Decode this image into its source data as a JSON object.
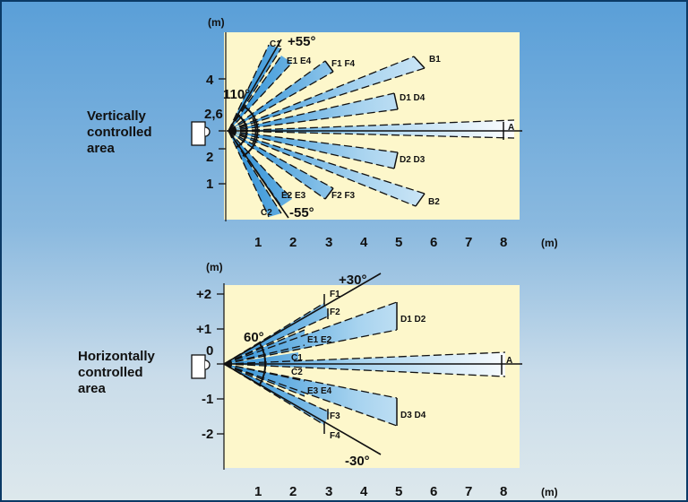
{
  "unit_label": "(m)",
  "top": {
    "area_title": [
      "Vertically",
      "controlled",
      "area"
    ],
    "y_ticks": [
      {
        "v": 4,
        "label": "4"
      },
      {
        "v": 2.6,
        "label": "2,6"
      },
      {
        "v": 2,
        "label": "2"
      },
      {
        "v": 1,
        "label": "1"
      }
    ],
    "x_ticks": [
      "1",
      "2",
      "3",
      "4",
      "5",
      "6",
      "7",
      "8"
    ],
    "angle_upper": "+55°",
    "angle_lower": "-55°",
    "angle_total": "110°",
    "beams": [
      "A",
      "B1",
      "B2",
      "C1",
      "C2",
      "D1 D4",
      "D2 D3",
      "E1 E4",
      "E2 E3",
      "F1 F4",
      "F2 F3"
    ]
  },
  "bottom": {
    "area_title": [
      "Horizontally",
      "controlled",
      "area"
    ],
    "y_ticks": [
      {
        "v": 2,
        "label": "+2"
      },
      {
        "v": 1,
        "label": "+1"
      },
      {
        "v": 0,
        "label": "0"
      },
      {
        "v": -1,
        "label": "-1"
      },
      {
        "v": -2,
        "label": "-2"
      }
    ],
    "x_ticks": [
      "1",
      "2",
      "3",
      "4",
      "5",
      "6",
      "7",
      "8"
    ],
    "angle_upper": "+30°",
    "angle_lower": "-30°",
    "angle_total": "60°",
    "beams": [
      "A",
      "C1",
      "C2",
      "D1 D2",
      "D3 D4",
      "E1 E2",
      "E3 E4",
      "F1",
      "F2",
      "F3",
      "F4"
    ]
  }
}
